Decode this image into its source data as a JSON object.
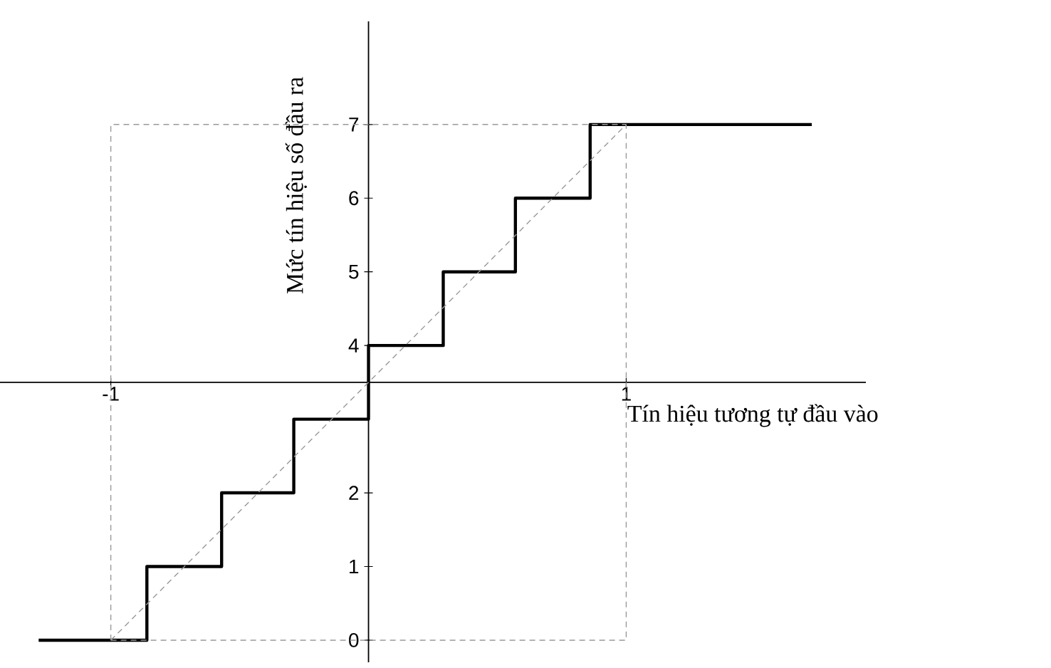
{
  "chart_data": {
    "type": "step",
    "xlabel": "Tín hiệu tương tự đầu vào",
    "ylabel": "Mức tín hiệu số đầu ra",
    "xlim": [
      -1.43,
      1.93
    ],
    "ylim": [
      -0.3,
      8.4
    ],
    "xticks": [
      -1,
      1
    ],
    "yticks": [
      0,
      1,
      2,
      4,
      5,
      6,
      7
    ],
    "grid": false,
    "marker": "none",
    "series": [
      {
        "color": "#000000",
        "line_style": "solid",
        "x": [
          -1.28,
          -0.86,
          -0.57,
          -0.29,
          0,
          0.29,
          0.57,
          0.86,
          1.72
        ],
        "values": [
          0,
          1,
          2,
          3,
          4,
          5,
          6,
          7,
          7
        ]
      },
      {
        "type": "line",
        "color": "#999999",
        "line_style": "dashed",
        "x": [
          -1,
          1
        ],
        "values": [
          0,
          7
        ]
      },
      {
        "type": "line",
        "color": "#999999",
        "line_style": "dashed",
        "x": [
          -1,
          -1,
          1
        ],
        "values": [
          0,
          7,
          7
        ]
      },
      {
        "type": "line",
        "color": "#999999",
        "line_style": "dashed",
        "x": [
          -1,
          1,
          1
        ],
        "values": [
          0,
          0,
          7
        ]
      }
    ]
  }
}
